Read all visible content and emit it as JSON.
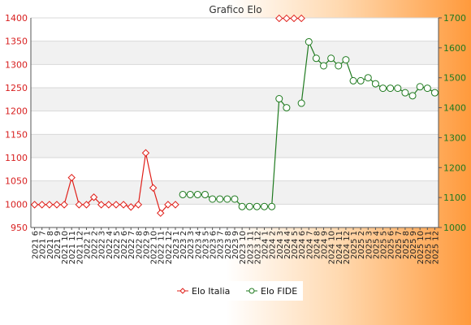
{
  "chart_data": {
    "type": "line",
    "title": "Grafico Elo",
    "categories": [
      "2021 6",
      "2021 7",
      "2021 8",
      "2021 9",
      "2021 10",
      "2021 11",
      "2021 12",
      "2022 1",
      "2022 2",
      "2022 3",
      "2022 4",
      "2022 5",
      "2022 6",
      "2022 7",
      "2022 8",
      "2022 9",
      "2022 10",
      "2022 11",
      "2022 12",
      "2023 1",
      "2023 2",
      "2023 3",
      "2023 4",
      "2023 5",
      "2023 6",
      "2023 7",
      "2023 8",
      "2023 9",
      "2023 10",
      "2023 11",
      "2023 12",
      "2024 1",
      "2024 2",
      "2024 3",
      "2024 4",
      "2024 5",
      "2024 6",
      "2024 7",
      "2024 8",
      "2024 9",
      "2024 10",
      "2024 11",
      "2024 12",
      "2025 1",
      "2025 2",
      "2025 3",
      "2025 4",
      "2025 5",
      "2025 6",
      "2025 7",
      "2025 8",
      "2025 9",
      "2025 10",
      "2025 11",
      "2025 12"
    ],
    "series": [
      {
        "name": "Elo Italia",
        "axis": "left",
        "color": "#e0201a",
        "marker": "diamond",
        "values": [
          999,
          999,
          999,
          999,
          999,
          1057,
          999,
          999,
          1015,
          999,
          999,
          999,
          999,
          994,
          999,
          1110,
          1035,
          981,
          999,
          999,
          null,
          null,
          null,
          null,
          null,
          null,
          null,
          null,
          null,
          null,
          null,
          null,
          null,
          1399,
          1399,
          1399,
          1399,
          null,
          null,
          null,
          null,
          null,
          null,
          null,
          null,
          null,
          null,
          null,
          null,
          null,
          null,
          null,
          null,
          null,
          null
        ]
      },
      {
        "name": "Elo FIDE",
        "axis": "right",
        "color": "#1f7a1f",
        "marker": "circle",
        "values": [
          null,
          null,
          null,
          null,
          null,
          null,
          null,
          null,
          null,
          null,
          null,
          null,
          null,
          null,
          null,
          null,
          null,
          null,
          null,
          null,
          1110,
          1110,
          1110,
          1110,
          1095,
          1095,
          1095,
          1095,
          1070,
          1070,
          1070,
          1070,
          1070,
          1430,
          1400,
          null,
          1415,
          1620,
          1565,
          1540,
          1565,
          1540,
          1560,
          1490,
          1490,
          1500,
          1480,
          1465,
          1465,
          1465,
          1450,
          1440,
          1470,
          1465,
          1450
        ]
      }
    ],
    "y_left": {
      "min": 950,
      "max": 1400,
      "ticks": [
        950,
        1000,
        1050,
        1100,
        1150,
        1200,
        1250,
        1300,
        1350,
        1400
      ],
      "color": "#d82020"
    },
    "y_right": {
      "min": 1000,
      "max": 1700,
      "ticks": [
        1000,
        1100,
        1200,
        1300,
        1400,
        1500,
        1600,
        1700
      ],
      "color": "#1f7a1f"
    },
    "grid": true,
    "legend_position": "bottom-center"
  }
}
